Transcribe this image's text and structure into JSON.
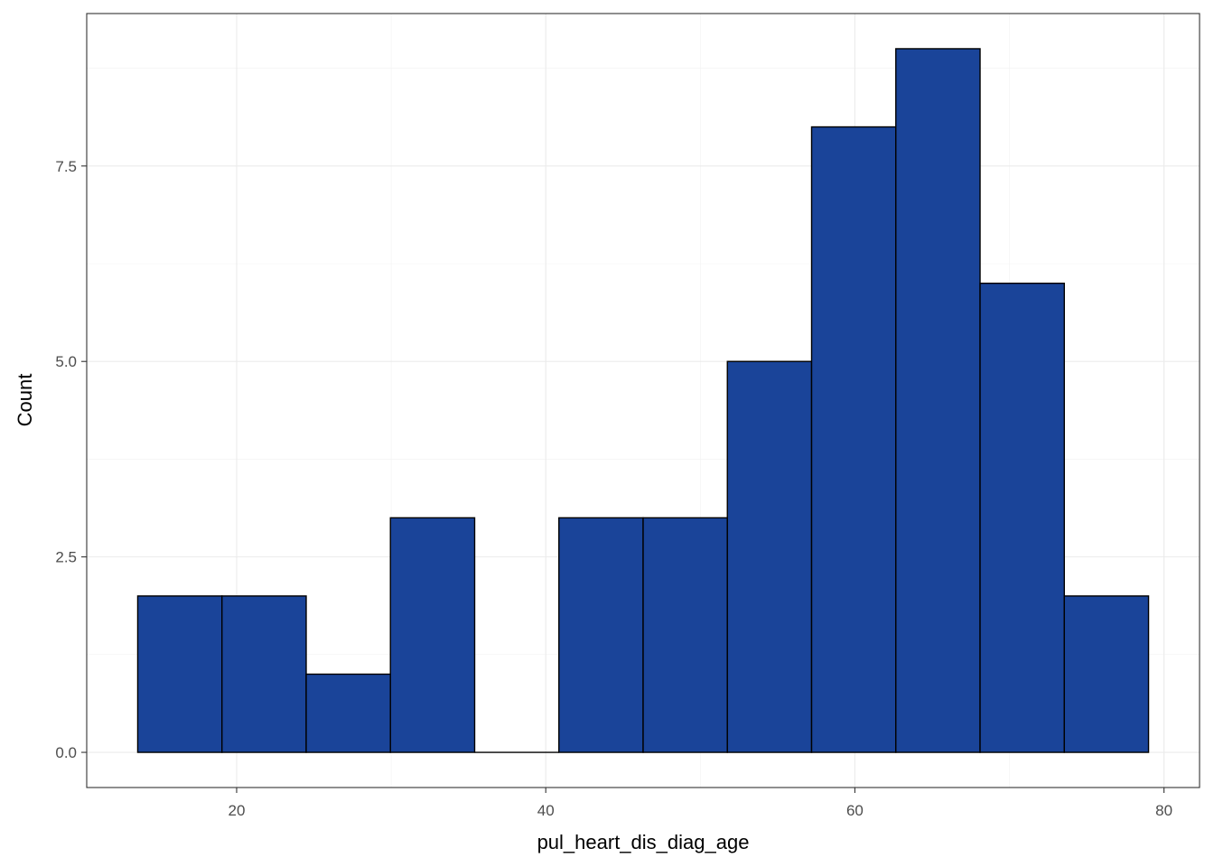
{
  "chart_data": {
    "type": "bar",
    "subtype": "histogram",
    "xlabel": "pul_heart_dis_diag_age",
    "ylabel": "Count",
    "bins": [
      {
        "x0": 13.6,
        "x1": 19.05,
        "count": 2
      },
      {
        "x0": 19.05,
        "x1": 24.5,
        "count": 2
      },
      {
        "x0": 24.5,
        "x1": 29.95,
        "count": 1
      },
      {
        "x0": 29.95,
        "x1": 35.4,
        "count": 3
      },
      {
        "x0": 35.4,
        "x1": 40.85,
        "count": 0
      },
      {
        "x0": 40.85,
        "x1": 46.3,
        "count": 3
      },
      {
        "x0": 46.3,
        "x1": 51.75,
        "count": 3
      },
      {
        "x0": 51.75,
        "x1": 57.2,
        "count": 5
      },
      {
        "x0": 57.2,
        "x1": 62.65,
        "count": 8
      },
      {
        "x0": 62.65,
        "x1": 68.1,
        "count": 9
      },
      {
        "x0": 68.1,
        "x1": 73.55,
        "count": 6
      },
      {
        "x0": 73.55,
        "x1": 79.0,
        "count": 2
      }
    ],
    "xlim": [
      10.3,
      82.3
    ],
    "ylim": [
      -0.45,
      9.45
    ],
    "xticks": [
      20,
      40,
      60,
      80
    ],
    "xtick_labels": [
      "20",
      "40",
      "60",
      "80"
    ],
    "yticks": [
      0,
      2.5,
      5,
      7.5
    ],
    "ytick_labels": [
      "0.0",
      "2.5",
      "5.0",
      "7.5"
    ],
    "grid": true,
    "fill_color": "#1a4499",
    "edge_color": "#000000"
  }
}
